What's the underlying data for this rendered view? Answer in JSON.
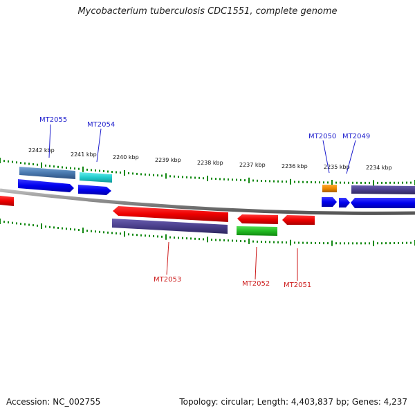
{
  "title": "Mycobacterium tuberculosis CDC1551, complete genome",
  "footer": {
    "accession": "Accession: NC_002755",
    "topology": "Topology: circular; Length: 4,403,837 bp; Genes: 4,237"
  },
  "scale_labels": [
    "2242 kbp",
    "2241 kbp",
    "2240 kbp",
    "2239 kbp",
    "2238 kbp",
    "2237 kbp",
    "2236 kbp",
    "2235 kbp",
    "2234 kbp"
  ],
  "genes_top": [
    "MT2055",
    "MT2054",
    "MT2050",
    "MT2049"
  ],
  "genes_bottom": [
    "MT2053",
    "MT2052",
    "MT2051"
  ],
  "colors": {
    "strand_forward_arrow": "#0000ee",
    "gene_red": "#ee0000",
    "tick_green": "#118811",
    "backbone": "#888888",
    "feature_indigo": "#4a3f8c",
    "feature_steelblue": "#4a7ab0",
    "feature_cyan": "#22cccc",
    "feature_orange": "#ee8800",
    "feature_green": "#22bb22"
  }
}
